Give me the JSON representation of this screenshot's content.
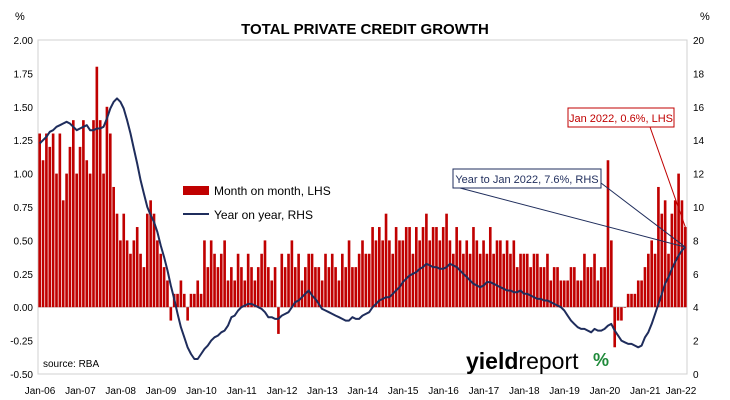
{
  "chart_data": {
    "type": "bar+line",
    "title": "TOTAL PRIVATE CREDIT GROWTH",
    "left_axis": {
      "unit_label": "%",
      "ylim": [
        -0.5,
        2.0
      ],
      "ticks": [
        "2.00",
        "1.75",
        "1.50",
        "1.25",
        "1.00",
        "0.75",
        "0.50",
        "0.25",
        "0.00",
        "-0.25",
        "-0.50"
      ]
    },
    "right_axis": {
      "unit_label": "%",
      "ylim": [
        0,
        20
      ],
      "ticks": [
        "20",
        "18",
        "16",
        "14",
        "12",
        "10",
        "8",
        "6",
        "4",
        "2",
        "0"
      ]
    },
    "x_ticks": [
      "Jan-06",
      "Jan-07",
      "Jan-08",
      "Jan-09",
      "Jan-10",
      "Jan-11",
      "Jan-12",
      "Jan-13",
      "Jan-14",
      "Jan-15",
      "Jan-16",
      "Jan-17",
      "Jan-18",
      "Jan-19",
      "Jan-20",
      "Jan-21",
      "Jan-22"
    ],
    "x_start": "2006-01",
    "months": 193,
    "legend": {
      "placement": "center-left",
      "items": [
        "Month on month, LHS",
        "Year on year, RHS"
      ]
    },
    "colors": {
      "bars": "#c00000",
      "line": "#1f2d5c",
      "bar_callout": "#c00000",
      "line_callout": "#1f2d5c"
    },
    "annotations": [
      {
        "text": "Jan 2022, 0.6%, LHS",
        "series": "Month on month, LHS",
        "date": "2022-01",
        "value": 0.6
      },
      {
        "text": "Year to Jan 2022, 7.6%, RHS",
        "series": "Year on year, RHS",
        "date": "2022-01",
        "value": 7.6
      }
    ],
    "source": "source: RBA",
    "series": [
      {
        "name": "Month on month, LHS",
        "axis": "left",
        "type": "bar",
        "values": [
          1.3,
          1.1,
          1.3,
          1.2,
          1.3,
          1.0,
          1.3,
          0.8,
          1.0,
          1.2,
          1.4,
          1.0,
          1.2,
          1.4,
          1.1,
          1.0,
          1.4,
          1.8,
          1.4,
          1.0,
          1.5,
          1.3,
          0.9,
          0.7,
          0.5,
          0.7,
          0.5,
          0.4,
          0.5,
          0.6,
          0.4,
          0.3,
          0.7,
          0.8,
          0.7,
          0.5,
          0.4,
          0.3,
          0.2,
          -0.1,
          0.1,
          0.1,
          0.2,
          0.1,
          -0.1,
          0.1,
          0.1,
          0.2,
          0.1,
          0.5,
          0.3,
          0.5,
          0.4,
          0.3,
          0.4,
          0.5,
          0.2,
          0.3,
          0.2,
          0.4,
          0.3,
          0.2,
          0.4,
          0.3,
          0.2,
          0.3,
          0.4,
          0.5,
          0.3,
          0.2,
          0.3,
          -0.2,
          0.4,
          0.3,
          0.4,
          0.5,
          0.3,
          0.4,
          0.2,
          0.3,
          0.4,
          0.4,
          0.3,
          0.3,
          0.2,
          0.4,
          0.3,
          0.4,
          0.3,
          0.2,
          0.4,
          0.3,
          0.5,
          0.3,
          0.3,
          0.4,
          0.5,
          0.4,
          0.4,
          0.6,
          0.5,
          0.6,
          0.5,
          0.7,
          0.5,
          0.4,
          0.6,
          0.5,
          0.5,
          0.6,
          0.6,
          0.4,
          0.6,
          0.5,
          0.6,
          0.7,
          0.5,
          0.6,
          0.6,
          0.5,
          0.6,
          0.7,
          0.5,
          0.4,
          0.6,
          0.5,
          0.4,
          0.5,
          0.4,
          0.6,
          0.5,
          0.4,
          0.5,
          0.4,
          0.6,
          0.4,
          0.5,
          0.5,
          0.4,
          0.5,
          0.4,
          0.5,
          0.3,
          0.4,
          0.4,
          0.4,
          0.3,
          0.4,
          0.4,
          0.3,
          0.3,
          0.4,
          0.2,
          0.3,
          0.3,
          0.2,
          0.2,
          0.2,
          0.3,
          0.3,
          0.2,
          0.2,
          0.4,
          0.3,
          0.3,
          0.4,
          0.2,
          0.3,
          0.3,
          1.1,
          0.5,
          -0.3,
          -0.1,
          -0.1,
          0.0,
          0.1,
          0.1,
          0.1,
          0.2,
          0.2,
          0.3,
          0.4,
          0.5,
          0.4,
          0.9,
          0.7,
          0.8,
          0.4,
          0.7,
          0.8,
          1.0,
          0.8,
          0.6
        ]
      },
      {
        "name": "Year on year, RHS",
        "axis": "right",
        "type": "line",
        "values": [
          13.8,
          14.0,
          14.2,
          14.5,
          14.6,
          14.8,
          14.9,
          15.0,
          15.1,
          15.0,
          14.8,
          14.6,
          14.7,
          14.8,
          14.9,
          14.6,
          14.6,
          14.7,
          14.7,
          14.8,
          15.3,
          15.9,
          16.3,
          16.5,
          16.3,
          15.9,
          15.2,
          14.4,
          13.5,
          12.6,
          11.6,
          10.8,
          10.0,
          9.5,
          9.1,
          8.5,
          7.7,
          7.0,
          6.2,
          5.3,
          4.5,
          3.6,
          2.8,
          2.2,
          1.6,
          1.2,
          0.9,
          0.9,
          1.2,
          1.5,
          1.7,
          2.0,
          2.2,
          2.3,
          2.5,
          2.6,
          2.9,
          3.4,
          3.5,
          3.8,
          4.0,
          4.1,
          4.2,
          4.2,
          4.1,
          4.0,
          3.9,
          3.7,
          3.4,
          3.4,
          3.3,
          3.3,
          3.5,
          3.6,
          3.7,
          4.0,
          4.3,
          4.4,
          4.6,
          4.8,
          5.0,
          4.7,
          4.5,
          4.2,
          3.9,
          3.8,
          3.7,
          3.6,
          3.5,
          3.4,
          3.3,
          3.2,
          3.2,
          3.4,
          3.3,
          3.3,
          3.5,
          3.6,
          3.7,
          4.0,
          4.2,
          4.4,
          4.5,
          4.6,
          4.6,
          4.8,
          5.0,
          5.2,
          5.5,
          5.7,
          5.9,
          6.0,
          6.1,
          6.3,
          6.4,
          6.6,
          6.5,
          6.4,
          6.4,
          6.3,
          6.3,
          6.4,
          6.6,
          6.5,
          6.4,
          6.2,
          6.0,
          5.8,
          5.6,
          5.4,
          5.3,
          5.2,
          5.3,
          5.5,
          5.5,
          5.4,
          5.3,
          5.2,
          5.1,
          5.0,
          5.0,
          4.9,
          4.9,
          5.0,
          4.8,
          4.8,
          4.7,
          4.6,
          4.5,
          4.5,
          4.4,
          4.4,
          4.3,
          4.2,
          4.1,
          4.0,
          3.8,
          3.5,
          3.2,
          3.0,
          2.8,
          2.7,
          2.7,
          2.6,
          2.5,
          2.7,
          2.6,
          2.6,
          2.7,
          2.9,
          3.0,
          2.6,
          2.3,
          2.0,
          1.9,
          1.8,
          1.8,
          1.7,
          1.6,
          1.7,
          2.2,
          2.5,
          3.0,
          3.6,
          4.2,
          4.8,
          5.4,
          5.8,
          6.3,
          6.7,
          7.1,
          7.4,
          7.6
        ]
      }
    ]
  },
  "branding": {
    "logo_text_a": "yield",
    "logo_text_b": "report",
    "logo_mark": "%"
  }
}
